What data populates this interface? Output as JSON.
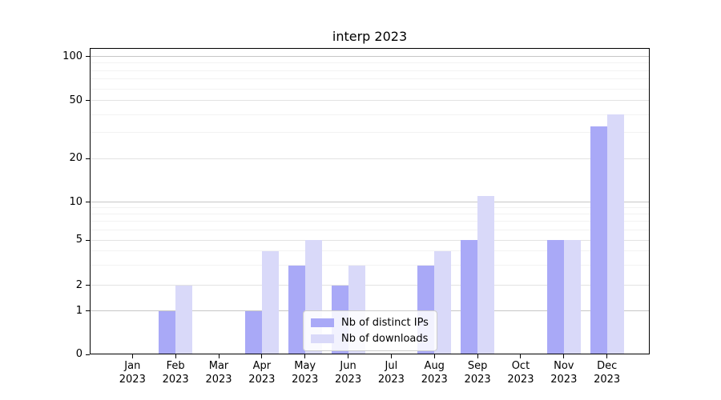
{
  "chart_data": {
    "type": "bar",
    "title": "interp 2023",
    "categories": [
      "Jan",
      "Feb",
      "Mar",
      "Apr",
      "May",
      "Jun",
      "Jul",
      "Aug",
      "Sep",
      "Oct",
      "Nov",
      "Dec"
    ],
    "x_year_label": "2023",
    "series": [
      {
        "name": "Nb of distinct IPs",
        "color": "#a9a9f7",
        "values": [
          0,
          1,
          0,
          1,
          3,
          2,
          0,
          3,
          5,
          0,
          5,
          33
        ]
      },
      {
        "name": "Nb of downloads",
        "color": "#d9d9f9",
        "values": [
          0,
          2,
          0,
          4,
          5,
          3,
          0,
          4,
          11,
          0,
          5,
          40
        ]
      }
    ],
    "yscale": "log-like with zero baseline",
    "ylim": [
      0,
      120
    ],
    "yticks": [
      0,
      1,
      2,
      5,
      10,
      20,
      50,
      100
    ],
    "minor_yticks": [
      3,
      4,
      6,
      7,
      8,
      9,
      30,
      40,
      60,
      70,
      80,
      90
    ],
    "grid": "both",
    "legend_position": "inside lower center"
  },
  "colors": {
    "decade_grid": "#c6c6c6",
    "labeled_grid": "#e3e3e3",
    "minor_grid": "#f2f2f2",
    "axis": "#000000",
    "background": "#ffffff"
  }
}
